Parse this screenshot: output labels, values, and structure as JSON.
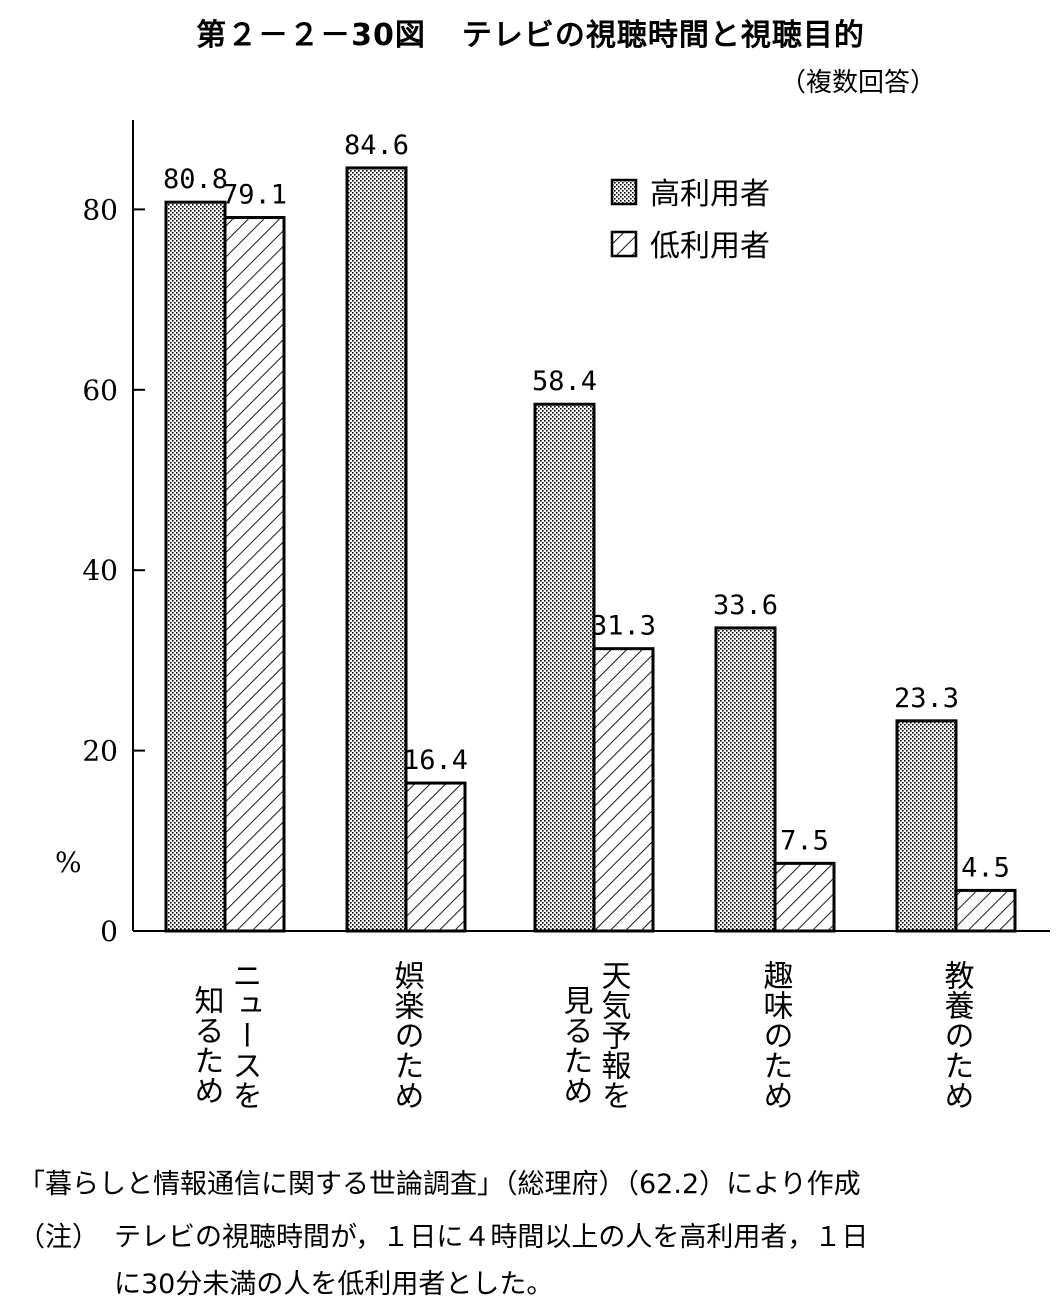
{
  "title": {
    "number": "第２－２－30図",
    "text": "テレビの視聴時間と視聴目的"
  },
  "subtitle": "（複数回答）",
  "chart_data": {
    "type": "bar",
    "ylabel": "%",
    "ylim": [
      0,
      90
    ],
    "yticks": [
      0,
      20,
      40,
      60,
      80
    ],
    "categories": [
      [
        "ニュースを",
        "知るため"
      ],
      [
        "娯楽のため"
      ],
      [
        "天気予報を",
        "見るため"
      ],
      [
        "趣味のため"
      ],
      [
        "教養のため"
      ]
    ],
    "series": [
      {
        "name": "高利用者",
        "values": [
          80.8,
          84.6,
          58.4,
          33.6,
          23.3
        ],
        "pattern": "dotted"
      },
      {
        "name": "低利用者",
        "values": [
          79.1,
          16.4,
          31.3,
          7.5,
          4.5
        ],
        "pattern": "hatched"
      }
    ],
    "value_labels": [
      [
        "80.8",
        "84.6",
        "58.4",
        "33.6",
        "23.3"
      ],
      [
        "79.1",
        "16.4",
        "31.3",
        "7.5",
        "4.5"
      ]
    ],
    "legend_position": "top-right"
  },
  "footer": {
    "source": "「暮らしと情報通信に関する世論調査」（総理府）（62.2）により作成",
    "note_label": "（注）",
    "note_line1": "テレビの視聴時間が，１日に４時間以上の人を高利用者，１日",
    "note_line2": "に30分未満の人を低利用者とした。"
  }
}
